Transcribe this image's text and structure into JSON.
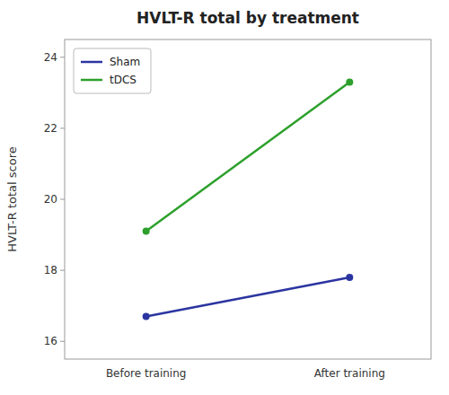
{
  "chart_data": {
    "type": "line",
    "title": "HVLT-R total by treatment",
    "y_label": "HVLT-R total score",
    "categories": [
      "Before training",
      "After training"
    ],
    "series": [
      {
        "name": "Sham",
        "color": "#2b35a0",
        "marker": "circle",
        "values": [
          16.7,
          17.8
        ]
      },
      {
        "name": "tDCS",
        "color": "#2da02b",
        "marker": "circle",
        "values": [
          19.1,
          23.3
        ]
      }
    ],
    "ylim": [
      15.5,
      24.5
    ],
    "yticks": [
      16,
      18,
      20,
      22,
      24
    ],
    "grid": false,
    "legend": "upper left"
  }
}
